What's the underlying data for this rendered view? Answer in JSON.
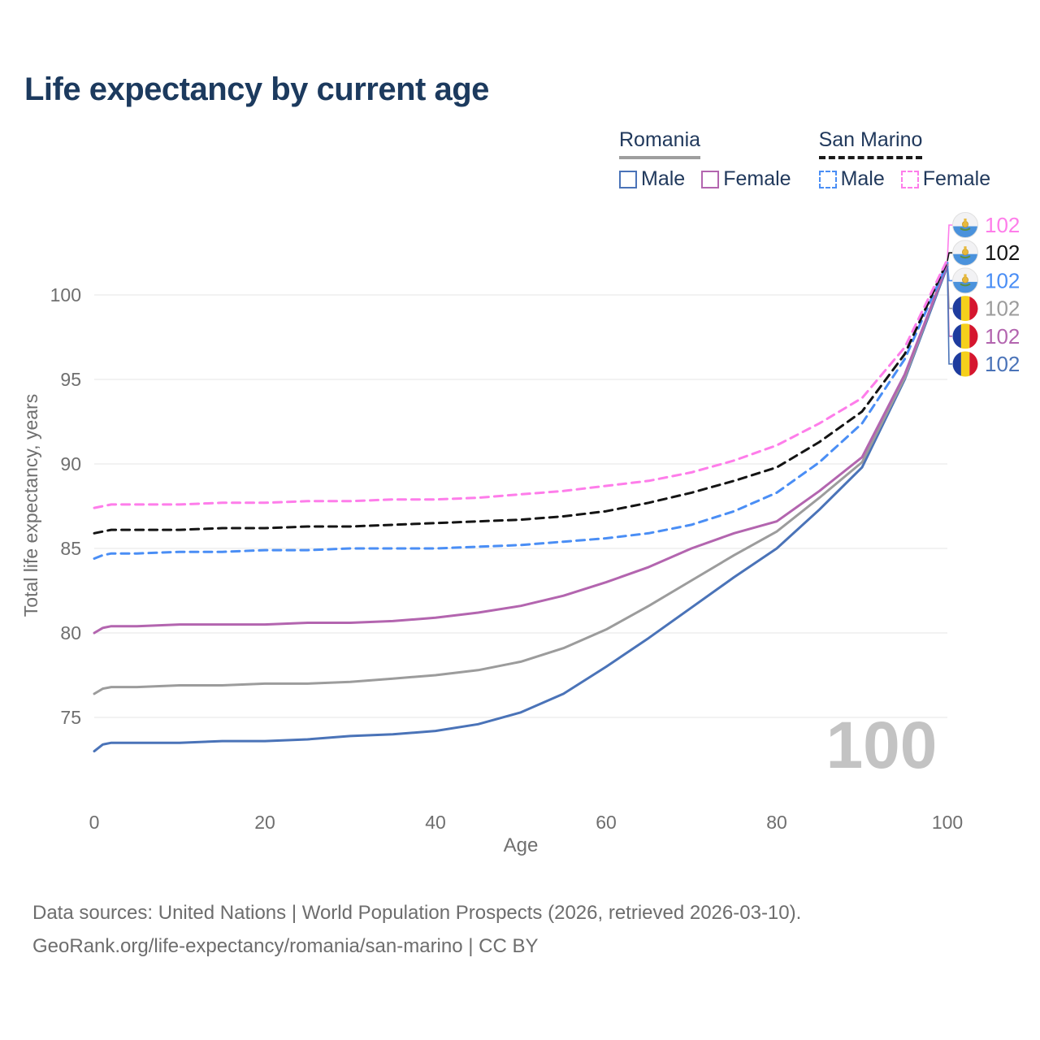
{
  "title": "Life expectancy by current age",
  "legend": {
    "groups": [
      {
        "name": "Romania",
        "underline_style": "solid",
        "underline_color": "#9e9e9e",
        "items": [
          {
            "label": "Male",
            "color": "#4a73b8",
            "dashed": false
          },
          {
            "label": "Female",
            "color": "#b365af",
            "dashed": false
          }
        ]
      },
      {
        "name": "San Marino",
        "underline_style": "dashed",
        "underline_color": "#1a1a1a",
        "items": [
          {
            "label": "Male",
            "color": "#4a8ef5",
            "dashed": true
          },
          {
            "label": "Female",
            "color": "#fe7dea",
            "dashed": true
          }
        ]
      }
    ]
  },
  "chart_data": {
    "type": "line",
    "title": "Life expectancy by current age",
    "xlabel": "Age",
    "ylabel": "Total life expectancy, years",
    "xlim": [
      0,
      100
    ],
    "ylim": [
      72,
      103
    ],
    "xticks": [
      0,
      20,
      40,
      60,
      80,
      100
    ],
    "yticks": [
      75,
      80,
      85,
      90,
      95,
      100
    ],
    "grid": "horizontal",
    "legend_position": "top-right",
    "watermark": "100",
    "ages": [
      0,
      1,
      2,
      5,
      10,
      15,
      20,
      25,
      30,
      35,
      40,
      45,
      50,
      55,
      60,
      65,
      70,
      75,
      80,
      85,
      90,
      95,
      100
    ],
    "series": [
      {
        "name": "Romania Male",
        "country": "romania",
        "sex": "male",
        "color": "#4a73b8",
        "dashed": false,
        "end_label": "102",
        "values": [
          73.0,
          73.4,
          73.5,
          73.5,
          73.5,
          73.6,
          73.6,
          73.7,
          73.9,
          74.0,
          74.2,
          74.6,
          75.3,
          76.4,
          78.0,
          79.7,
          81.5,
          83.3,
          85.0,
          87.3,
          89.8,
          95.0,
          101.7
        ]
      },
      {
        "name": "Romania Total",
        "country": "romania",
        "sex": "both",
        "color": "#9c9c9c",
        "dashed": false,
        "end_label": "102",
        "values": [
          76.4,
          76.7,
          76.8,
          76.8,
          76.9,
          76.9,
          77.0,
          77.0,
          77.1,
          77.3,
          77.5,
          77.8,
          78.3,
          79.1,
          80.2,
          81.6,
          83.1,
          84.6,
          86.0,
          88.0,
          90.1,
          95.1,
          101.85
        ]
      },
      {
        "name": "Romania Female",
        "country": "romania",
        "sex": "female",
        "color": "#b365af",
        "dashed": false,
        "end_label": "102",
        "values": [
          80.0,
          80.3,
          80.4,
          80.4,
          80.5,
          80.5,
          80.5,
          80.6,
          80.6,
          80.7,
          80.9,
          81.2,
          81.6,
          82.2,
          83.0,
          83.9,
          85.0,
          85.9,
          86.6,
          88.4,
          90.4,
          95.3,
          101.8
        ]
      },
      {
        "name": "San Marino Male",
        "country": "san-marino",
        "sex": "male",
        "color": "#4a8ef5",
        "dashed": true,
        "end_label": "102",
        "values": [
          84.4,
          84.6,
          84.7,
          84.7,
          84.8,
          84.8,
          84.9,
          84.9,
          85.0,
          85.0,
          85.0,
          85.1,
          85.2,
          85.4,
          85.6,
          85.9,
          86.4,
          87.2,
          88.3,
          90.1,
          92.4,
          96.2,
          101.9
        ]
      },
      {
        "name": "San Marino Total",
        "country": "san-marino",
        "sex": "both",
        "color": "#141414",
        "dashed": true,
        "end_label": "102",
        "values": [
          85.9,
          86.0,
          86.1,
          86.1,
          86.1,
          86.2,
          86.2,
          86.3,
          86.3,
          86.4,
          86.5,
          86.6,
          86.7,
          86.9,
          87.2,
          87.7,
          88.3,
          89.0,
          89.8,
          91.3,
          93.1,
          96.5,
          102.0
        ]
      },
      {
        "name": "San Marino Female",
        "country": "san-marino",
        "sex": "female",
        "color": "#fe7dea",
        "dashed": true,
        "end_label": "102",
        "values": [
          87.4,
          87.5,
          87.6,
          87.6,
          87.6,
          87.7,
          87.7,
          87.8,
          87.8,
          87.9,
          87.9,
          88.0,
          88.2,
          88.4,
          88.7,
          89.0,
          89.5,
          90.2,
          91.1,
          92.4,
          93.9,
          96.9,
          102.1
        ]
      }
    ]
  },
  "footer": {
    "line1": "Data sources: United Nations | World Population Prospects (2026, retrieved 2026-03-10).",
    "line2": "GeoRank.org/life-expectancy/romania/san-marino | CC BY"
  }
}
